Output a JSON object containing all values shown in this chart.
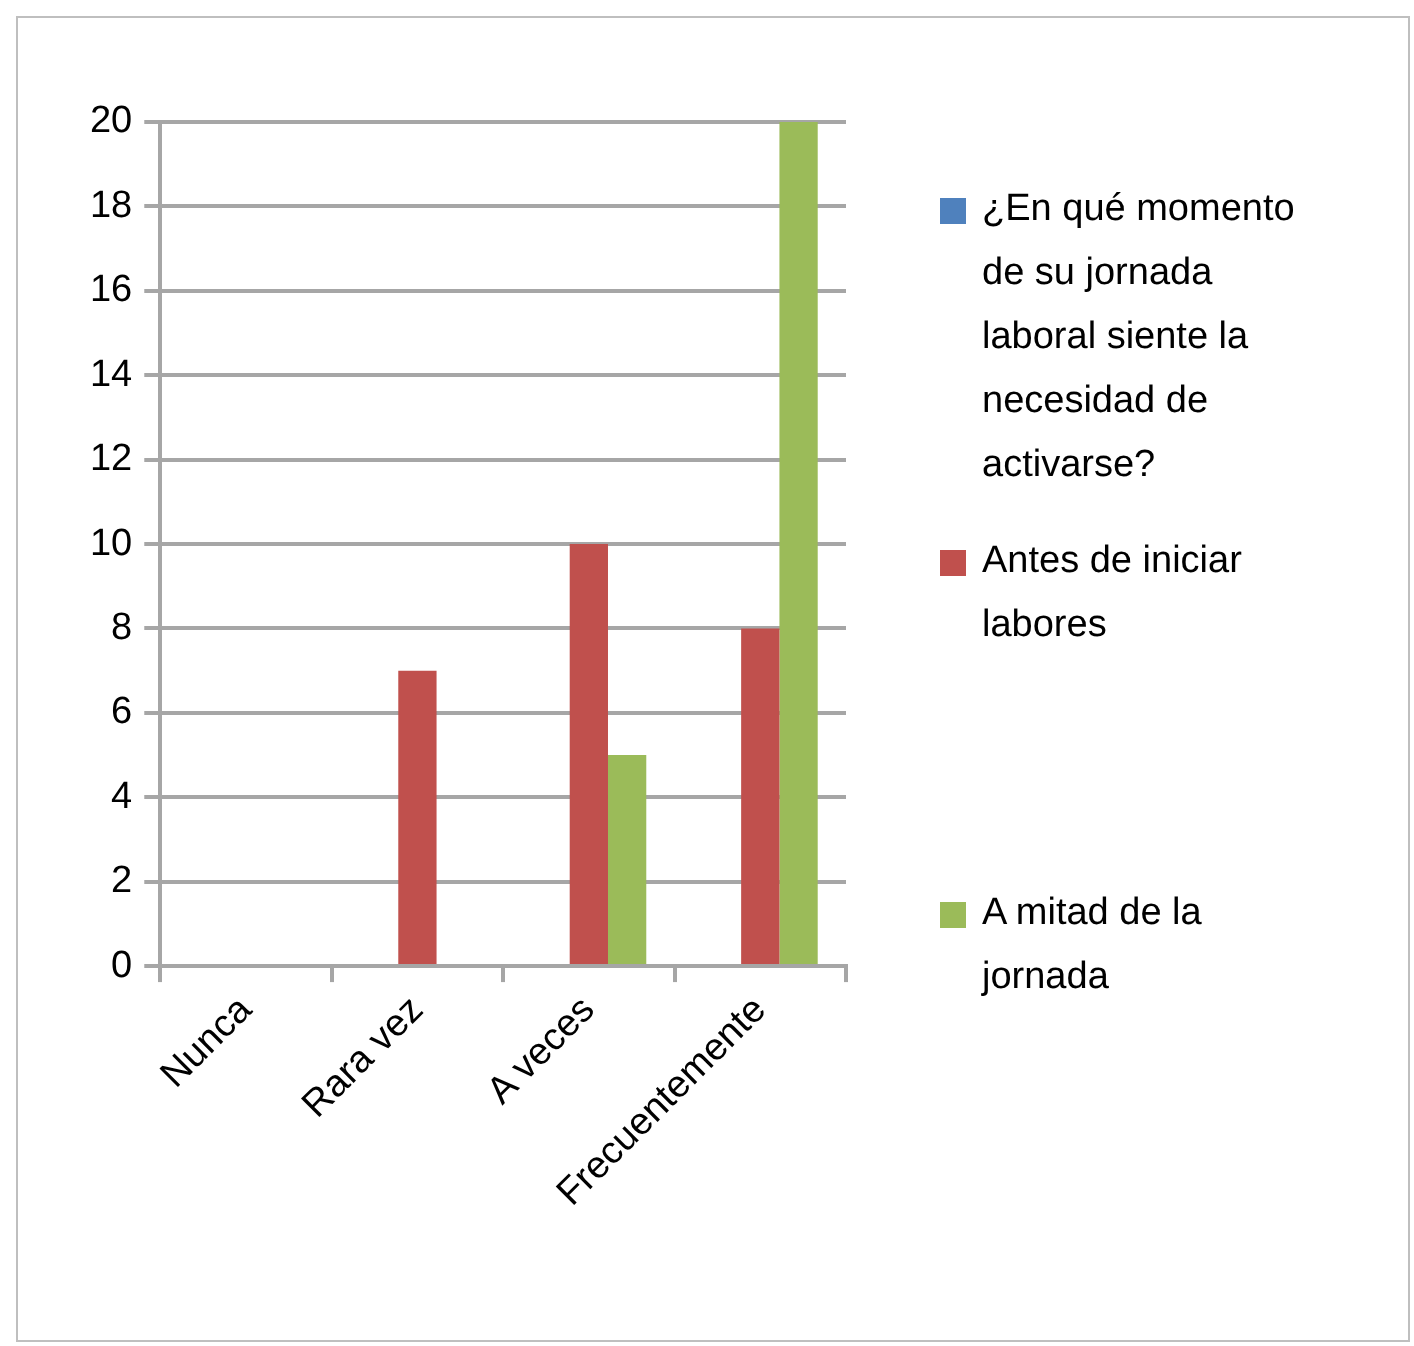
{
  "chart_data": {
    "type": "bar",
    "categories": [
      "Nunca",
      "Rara vez",
      "A veces",
      "Frecuentemente"
    ],
    "series": [
      {
        "name": "¿En qué momento de su jornada laboral siente la necesidad de activarse?",
        "color": "#4f81bd",
        "values": [
          null,
          null,
          null,
          null
        ]
      },
      {
        "name": "Antes de iniciar labores",
        "color": "#c0504d",
        "values": [
          0,
          7,
          10,
          8
        ]
      },
      {
        "name": "A mitad de la jornada",
        "color": "#9bbb59",
        "values": [
          0,
          0,
          5,
          20
        ]
      }
    ],
    "ylim": [
      0,
      20
    ],
    "yticks": [
      0,
      2,
      4,
      6,
      8,
      10,
      12,
      14,
      16,
      18,
      20
    ],
    "grid": "y",
    "legend": "right"
  }
}
